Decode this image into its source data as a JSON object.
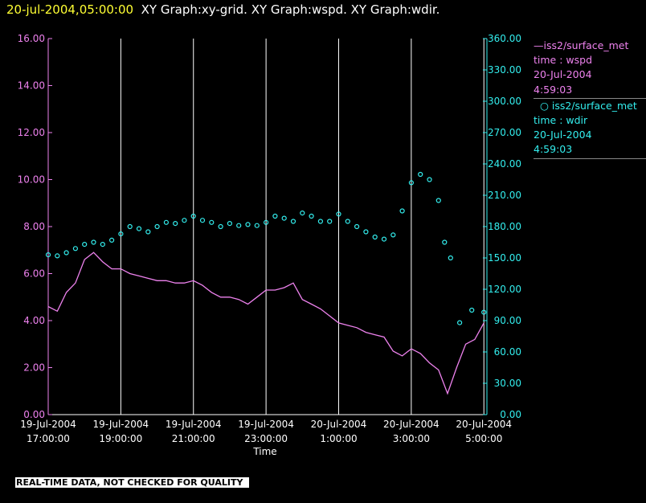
{
  "header": {
    "timestamp": "20-jul-2004,05:00:00",
    "titles": "XY Graph:xy-grid.  XY Graph:wspd.  XY Graph:wdir."
  },
  "legend": [
    {
      "source": "iss2/surface_met",
      "vars": "time : wspd",
      "date": "20-Jul-2004",
      "time": "4:59:03",
      "color": "#ee82ee"
    },
    {
      "source": "iss2/surface_met",
      "vars": "time : wdir",
      "date": "20-Jul-2004",
      "time": "4:59:03",
      "color": "#33eeee"
    }
  ],
  "note": "REAL-TIME DATA, NOT CHECKED FOR QUALITY",
  "chart_data": {
    "type": "line",
    "xlabel": "Time",
    "x_tick_labels": [
      [
        "19-Jul-2004",
        "17:00:00"
      ],
      [
        "19-Jul-2004",
        "19:00:00"
      ],
      [
        "19-Jul-2004",
        "21:00:00"
      ],
      [
        "19-Jul-2004",
        "23:00:00"
      ],
      [
        "20-Jul-2004",
        "1:00:00"
      ],
      [
        "20-Jul-2004",
        "3:00:00"
      ],
      [
        "20-Jul-2004",
        "5:00:00"
      ]
    ],
    "xlim": [
      "2004-07-19 17:00",
      "2004-07-20 05:05"
    ],
    "left_axis": {
      "ylim": [
        0,
        16
      ],
      "ticks": [
        "0.00",
        "2.00",
        "4.00",
        "6.00",
        "8.00",
        "10.00",
        "12.00",
        "14.00",
        "16.00"
      ],
      "color": "#ee82ee"
    },
    "right_axis": {
      "ylim": [
        0,
        360
      ],
      "ticks": [
        "0.00",
        "30.00",
        "60.00",
        "90.00",
        "120.00",
        "150.00",
        "180.00",
        "210.00",
        "240.00",
        "270.00",
        "300.00",
        "330.00",
        "360.00"
      ],
      "color": "#33eeee"
    },
    "grid": "vertical",
    "series": [
      {
        "name": "iss2/surface_met time : wspd",
        "axis": "left",
        "style": "line",
        "color": "#ee82ee",
        "x": [
          "2004-07-19 17:00",
          "2004-07-19 17:15",
          "2004-07-19 17:30",
          "2004-07-19 17:45",
          "2004-07-19 18:00",
          "2004-07-19 18:15",
          "2004-07-19 18:30",
          "2004-07-19 18:45",
          "2004-07-19 19:00",
          "2004-07-19 19:15",
          "2004-07-19 19:30",
          "2004-07-19 19:45",
          "2004-07-19 20:00",
          "2004-07-19 20:15",
          "2004-07-19 20:30",
          "2004-07-19 20:45",
          "2004-07-19 21:00",
          "2004-07-19 21:15",
          "2004-07-19 21:30",
          "2004-07-19 21:45",
          "2004-07-19 22:00",
          "2004-07-19 22:15",
          "2004-07-19 22:30",
          "2004-07-19 22:45",
          "2004-07-19 23:00",
          "2004-07-19 23:15",
          "2004-07-19 23:30",
          "2004-07-19 23:45",
          "2004-07-20 00:00",
          "2004-07-20 00:15",
          "2004-07-20 00:30",
          "2004-07-20 00:45",
          "2004-07-20 01:00",
          "2004-07-20 01:15",
          "2004-07-20 01:30",
          "2004-07-20 01:45",
          "2004-07-20 02:00",
          "2004-07-20 02:15",
          "2004-07-20 02:30",
          "2004-07-20 02:45",
          "2004-07-20 03:00",
          "2004-07-20 03:15",
          "2004-07-20 03:30",
          "2004-07-20 03:45",
          "2004-07-20 04:00",
          "2004-07-20 04:15",
          "2004-07-20 04:30",
          "2004-07-20 04:45",
          "2004-07-20 05:00"
        ],
        "values": [
          4.6,
          4.4,
          5.2,
          5.6,
          6.6,
          6.9,
          6.5,
          6.2,
          6.2,
          6.0,
          5.9,
          5.8,
          5.7,
          5.7,
          5.6,
          5.6,
          5.7,
          5.5,
          5.2,
          5.0,
          5.0,
          4.9,
          4.7,
          5.0,
          5.3,
          5.3,
          5.4,
          5.6,
          4.9,
          4.7,
          4.5,
          4.2,
          3.9,
          3.8,
          3.7,
          3.5,
          3.4,
          3.3,
          2.7,
          2.5,
          2.8,
          2.6,
          2.2,
          1.9,
          0.9,
          2.0,
          3.0,
          3.2,
          3.9
        ]
      },
      {
        "name": "iss2/surface_met time : wdir",
        "axis": "right",
        "style": "circles",
        "color": "#33eeee",
        "x": [
          "2004-07-19 17:00",
          "2004-07-19 17:15",
          "2004-07-19 17:30",
          "2004-07-19 17:45",
          "2004-07-19 18:00",
          "2004-07-19 18:15",
          "2004-07-19 18:30",
          "2004-07-19 18:45",
          "2004-07-19 19:00",
          "2004-07-19 19:15",
          "2004-07-19 19:30",
          "2004-07-19 19:45",
          "2004-07-19 20:00",
          "2004-07-19 20:15",
          "2004-07-19 20:30",
          "2004-07-19 20:45",
          "2004-07-19 21:00",
          "2004-07-19 21:15",
          "2004-07-19 21:30",
          "2004-07-19 21:45",
          "2004-07-19 22:00",
          "2004-07-19 22:15",
          "2004-07-19 22:30",
          "2004-07-19 22:45",
          "2004-07-19 23:00",
          "2004-07-19 23:15",
          "2004-07-19 23:30",
          "2004-07-19 23:45",
          "2004-07-20 00:00",
          "2004-07-20 00:15",
          "2004-07-20 00:30",
          "2004-07-20 00:45",
          "2004-07-20 01:00",
          "2004-07-20 01:15",
          "2004-07-20 01:30",
          "2004-07-20 01:45",
          "2004-07-20 02:00",
          "2004-07-20 02:15",
          "2004-07-20 02:30",
          "2004-07-20 02:45",
          "2004-07-20 03:00",
          "2004-07-20 03:15",
          "2004-07-20 03:30",
          "2004-07-20 03:45",
          "2004-07-20 03:55",
          "2004-07-20 04:05",
          "2004-07-20 04:20",
          "2004-07-20 04:40",
          "2004-07-20 05:00"
        ],
        "values": [
          153,
          152,
          155,
          159,
          163,
          165,
          163,
          167,
          173,
          180,
          178,
          175,
          180,
          184,
          183,
          186,
          190,
          186,
          184,
          180,
          183,
          181,
          182,
          181,
          184,
          190,
          188,
          185,
          193,
          190,
          185,
          185,
          192,
          185,
          180,
          175,
          170,
          168,
          172,
          195,
          222,
          230,
          225,
          205,
          165,
          150,
          88,
          100,
          98
        ]
      }
    ]
  }
}
